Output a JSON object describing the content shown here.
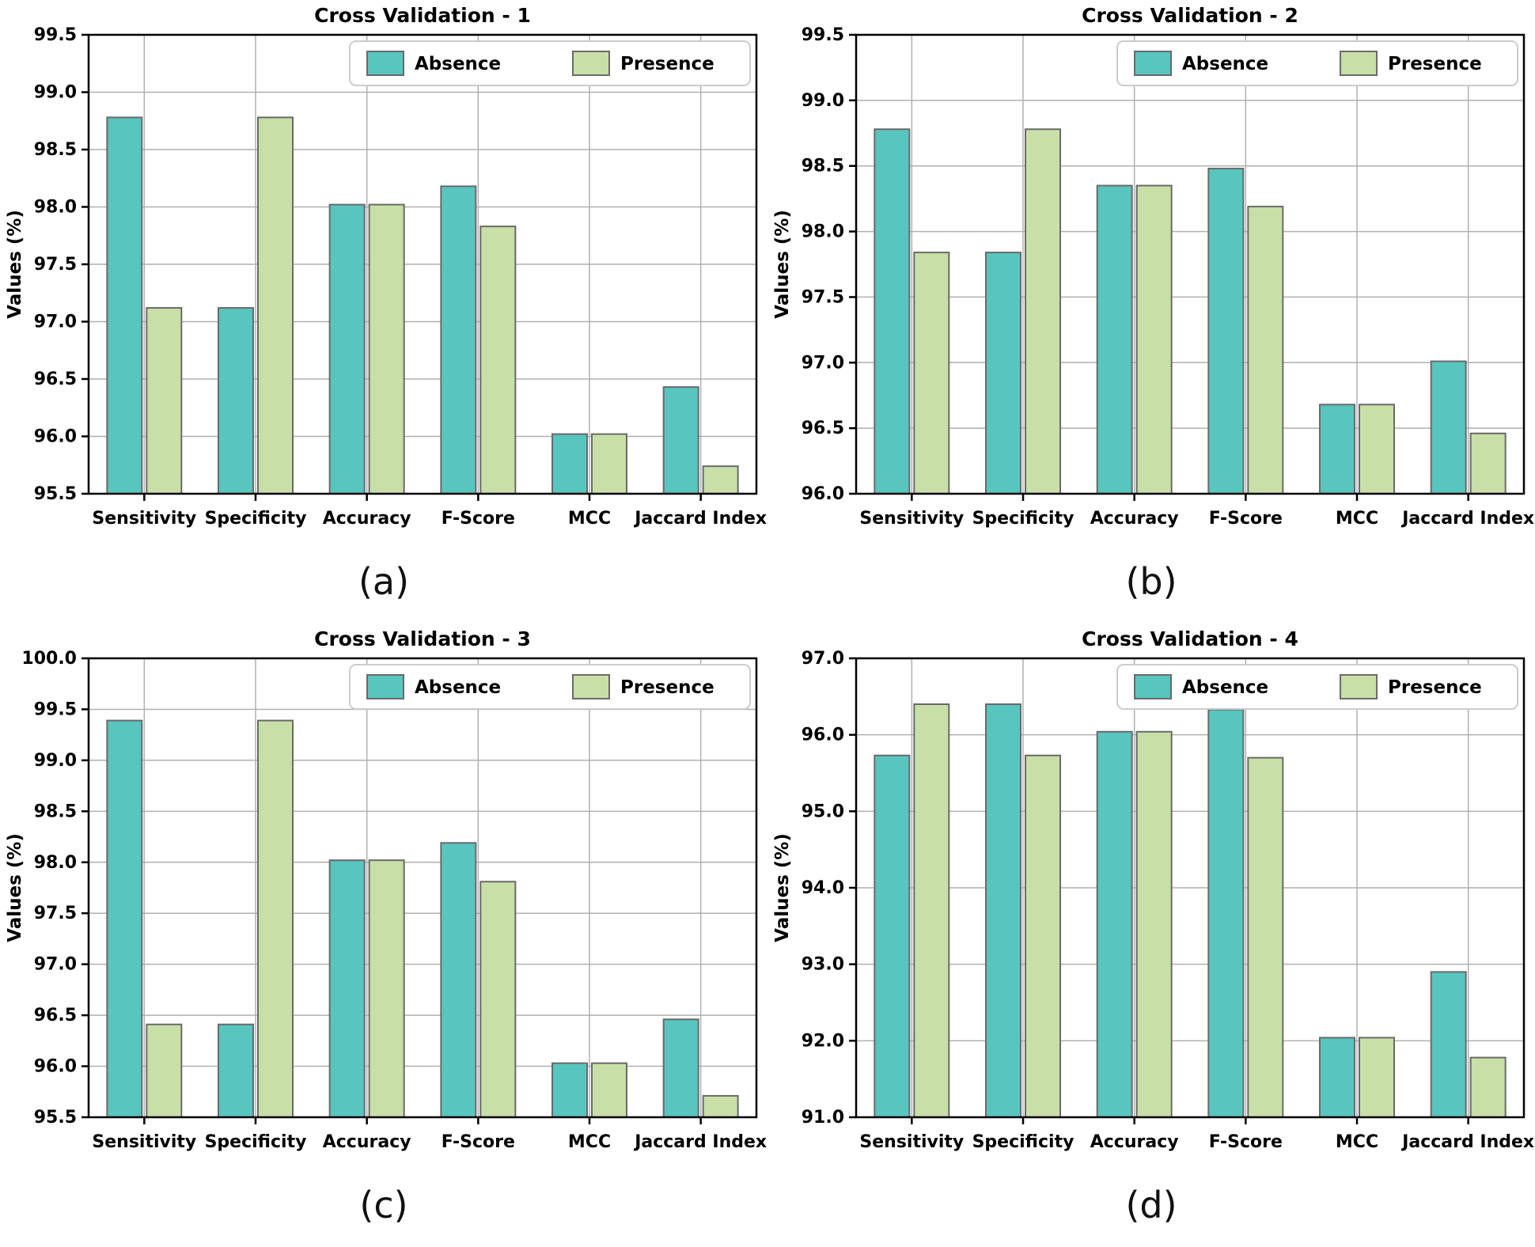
{
  "figure": {
    "ylabel": "Values (%)",
    "legend": {
      "absence_label": "Absence",
      "presence_label": "Presence"
    },
    "colors": {
      "absence": "#58C5BF",
      "presence": "#C8E0A8",
      "bar_edge": "#6a6a6a",
      "grid": "#b0b0b0",
      "spine": "#000000",
      "legend_border": "#cccccc",
      "legend_bg": "#ffffff",
      "text": "#000000"
    }
  },
  "chart_data": [
    {
      "type": "bar",
      "title": "Cross Validation - 1",
      "caption": "(a)",
      "xlabel": "",
      "ylabel": "Values (%)",
      "categories": [
        "Sensitivity",
        "Specificity",
        "Accuracy",
        "F-Score",
        "MCC",
        "Jaccard Index"
      ],
      "series": [
        {
          "name": "Absence",
          "values": [
            98.78,
            97.12,
            98.02,
            98.18,
            96.02,
            96.43
          ]
        },
        {
          "name": "Presence",
          "values": [
            97.12,
            98.78,
            98.02,
            97.83,
            96.02,
            95.74
          ]
        }
      ],
      "ylim": [
        95.5,
        99.5
      ],
      "ytick_step": 0.5,
      "grid": "on",
      "legend_position": "upper right"
    },
    {
      "type": "bar",
      "title": "Cross Validation - 2",
      "caption": "(b)",
      "xlabel": "",
      "ylabel": "Values (%)",
      "categories": [
        "Sensitivity",
        "Specificity",
        "Accuracy",
        "F-Score",
        "MCC",
        "Jaccard Index"
      ],
      "series": [
        {
          "name": "Absence",
          "values": [
            98.78,
            97.84,
            98.35,
            98.48,
            96.68,
            97.01
          ]
        },
        {
          "name": "Presence",
          "values": [
            97.84,
            98.78,
            98.35,
            98.19,
            96.68,
            96.46
          ]
        }
      ],
      "ylim": [
        96.0,
        99.5
      ],
      "ytick_step": 0.5,
      "grid": "on",
      "legend_position": "upper right"
    },
    {
      "type": "bar",
      "title": "Cross Validation - 3",
      "caption": "(c)",
      "xlabel": "",
      "ylabel": "Values (%)",
      "categories": [
        "Sensitivity",
        "Specificity",
        "Accuracy",
        "F-Score",
        "MCC",
        "Jaccard Index"
      ],
      "series": [
        {
          "name": "Absence",
          "values": [
            99.39,
            96.41,
            98.02,
            98.19,
            96.03,
            96.46
          ]
        },
        {
          "name": "Presence",
          "values": [
            96.41,
            99.39,
            98.02,
            97.81,
            96.03,
            95.71
          ]
        }
      ],
      "ylim": [
        95.5,
        100.0
      ],
      "ytick_step": 0.5,
      "grid": "on",
      "legend_position": "upper right"
    },
    {
      "type": "bar",
      "title": "Cross Validation - 4",
      "caption": "(d)",
      "xlabel": "",
      "ylabel": "Values (%)",
      "categories": [
        "Sensitivity",
        "Specificity",
        "Accuracy",
        "F-Score",
        "MCC",
        "Jaccard Index"
      ],
      "series": [
        {
          "name": "Absence",
          "values": [
            95.73,
            96.4,
            96.04,
            96.33,
            92.04,
            92.9
          ]
        },
        {
          "name": "Presence",
          "values": [
            96.4,
            95.73,
            96.04,
            95.7,
            92.04,
            91.78
          ]
        }
      ],
      "ylim": [
        91.0,
        97.0
      ],
      "ytick_step": 1.0,
      "grid": "on",
      "legend_position": "upper right"
    }
  ]
}
